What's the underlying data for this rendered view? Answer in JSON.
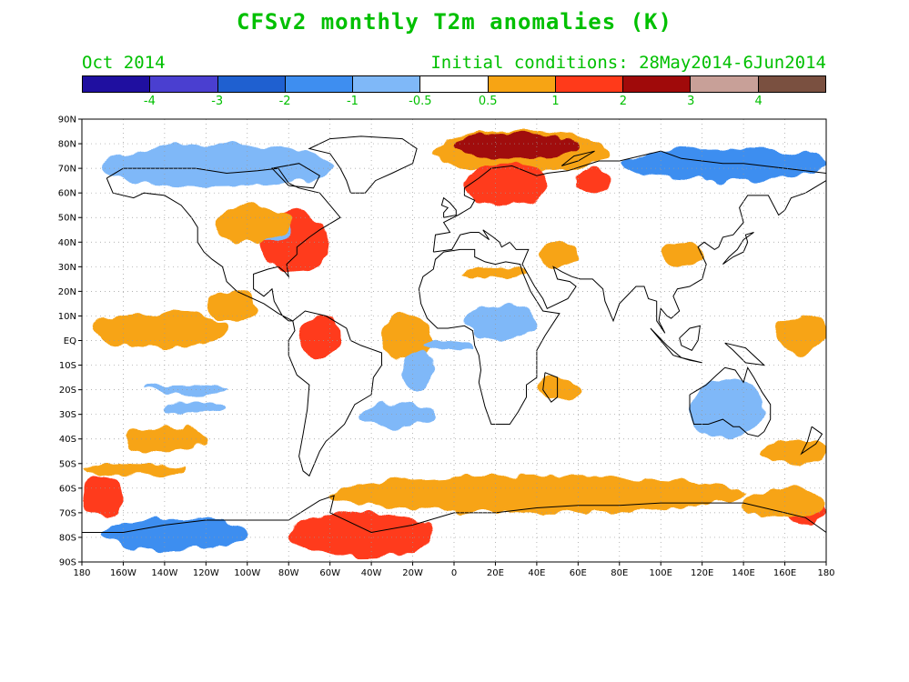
{
  "title": "CFSv2 monthly T2m anomalies (K)",
  "valid_month": "Oct 2014",
  "initial_conditions": "Initial conditions: 28May2014-6Jun2014",
  "colorbar": {
    "colors": [
      "#1f0fa0",
      "#4a3fd0",
      "#1f60d0",
      "#3e8ef0",
      "#7fb8f8",
      "#ffffff",
      "#f7a414",
      "#ff3a1a",
      "#a00a0a",
      "#c8a098",
      "#7a5040"
    ],
    "labels": [
      "-4",
      "-3",
      "-2",
      "-1",
      "-0.5",
      "0.5",
      "1",
      "2",
      "3",
      "4"
    ]
  },
  "axes": {
    "lat_labels": [
      "90N",
      "80N",
      "70N",
      "60N",
      "50N",
      "40N",
      "30N",
      "20N",
      "10N",
      "EQ",
      "10S",
      "20S",
      "30S",
      "40S",
      "50S",
      "60S",
      "70S",
      "80S",
      "90S"
    ],
    "lon_labels": [
      "180",
      "160W",
      "140W",
      "120W",
      "100W",
      "80W",
      "60W",
      "40W",
      "20W",
      "0",
      "20E",
      "40E",
      "60E",
      "80E",
      "100E",
      "120E",
      "140E",
      "160E",
      "180"
    ]
  },
  "anomaly_regions": [
    {
      "name": "arctic-siberia-warm",
      "lon": [
        -10,
        75
      ],
      "lat": [
        68,
        85
      ],
      "level": "orange"
    },
    {
      "name": "barents-kara-hot",
      "lon": [
        0,
        60
      ],
      "lat": [
        74,
        84
      ],
      "level": "darkred"
    },
    {
      "name": "scandinavia-warm",
      "lon": [
        5,
        45
      ],
      "lat": [
        55,
        72
      ],
      "level": "red"
    },
    {
      "name": "canada-cold",
      "lon": [
        -170,
        -60
      ],
      "lat": [
        62,
        80
      ],
      "level": "lightblue"
    },
    {
      "name": "east-siberia-cold",
      "lon": [
        80,
        180
      ],
      "lat": [
        65,
        78
      ],
      "level": "blue"
    },
    {
      "name": "eastern-us-warm",
      "lon": [
        -95,
        -60
      ],
      "lat": [
        28,
        52
      ],
      "level": "red"
    },
    {
      "name": "east-pacific-warm",
      "lon": [
        -175,
        -110
      ],
      "lat": [
        -3,
        12
      ],
      "level": "orange"
    },
    {
      "name": "amazon-warm",
      "lon": [
        -75,
        -55
      ],
      "lat": [
        -8,
        10
      ],
      "level": "red"
    },
    {
      "name": "southern-ocean-warm",
      "lon": [
        -60,
        140
      ],
      "lat": [
        -70,
        -55
      ],
      "level": "orange"
    },
    {
      "name": "antarctica-warm",
      "lon": [
        -80,
        -10
      ],
      "lat": [
        -88,
        -70
      ],
      "level": "red"
    },
    {
      "name": "west-antarctica-cold",
      "lon": [
        -170,
        -100
      ],
      "lat": [
        -85,
        -72
      ],
      "level": "blue"
    },
    {
      "name": "australia-cold",
      "lon": [
        115,
        150
      ],
      "lat": [
        -40,
        -15
      ],
      "level": "lightblue"
    },
    {
      "name": "west-pacific-warm",
      "lon": [
        155,
        180
      ],
      "lat": [
        -5,
        10
      ],
      "level": "orange"
    }
  ]
}
